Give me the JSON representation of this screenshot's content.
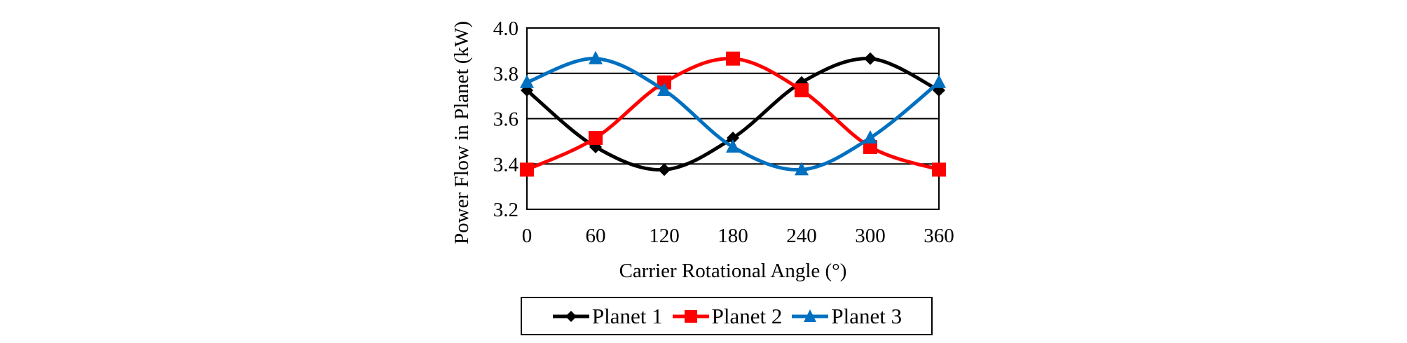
{
  "chart_data": {
    "type": "line",
    "xlabel": "Carrier Rotational Angle (°)",
    "ylabel": "Power Flow in Planet (kW)",
    "xlim": [
      0,
      360
    ],
    "ylim": [
      3.2,
      4.0
    ],
    "xticks": [
      0,
      60,
      120,
      180,
      240,
      300,
      360
    ],
    "yticks": [
      3.2,
      3.4,
      3.6,
      3.8,
      4.0
    ],
    "ytick_labels": [
      "3.2",
      "3.4",
      "3.6",
      "3.8",
      "4.0"
    ],
    "grid": "horizontal",
    "legend_position": "bottom",
    "x": [
      0,
      60,
      120,
      180,
      240,
      300,
      360
    ],
    "series": [
      {
        "name": "Planet 1",
        "color": "#000000",
        "marker": "diamond",
        "values": [
          3.725,
          3.475,
          3.375,
          3.515,
          3.76,
          3.865,
          3.725
        ]
      },
      {
        "name": "Planet 2",
        "color": "#ff0000",
        "marker": "square",
        "values": [
          3.375,
          3.515,
          3.76,
          3.865,
          3.725,
          3.475,
          3.375
        ]
      },
      {
        "name": "Planet 3",
        "color": "#0070c0",
        "marker": "triangle",
        "values": [
          3.76,
          3.865,
          3.725,
          3.475,
          3.375,
          3.515,
          3.76
        ]
      }
    ]
  }
}
